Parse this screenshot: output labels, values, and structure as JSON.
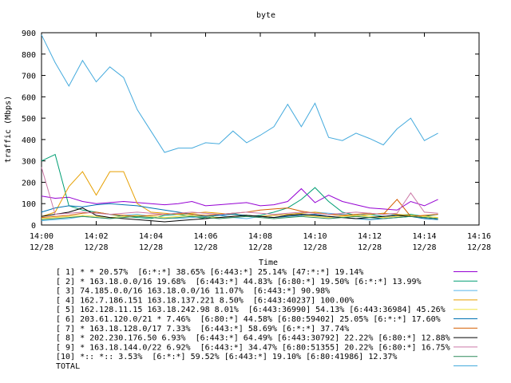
{
  "chart_data": {
    "type": "line",
    "title": "byte",
    "xlabel": "Time",
    "ylabel": "traffic (Mbps)",
    "ylim": [
      0,
      900
    ],
    "yticks": [
      0,
      100,
      200,
      300,
      400,
      500,
      600,
      700,
      800,
      900
    ],
    "xlim": [
      "14:00",
      "14:16"
    ],
    "xticks": [
      {
        "time": "14:00",
        "date": "12/28"
      },
      {
        "time": "14:02",
        "date": "12/28"
      },
      {
        "time": "14:04",
        "date": "12/28"
      },
      {
        "time": "14:06",
        "date": "12/28"
      },
      {
        "time": "14:08",
        "date": "12/28"
      },
      {
        "time": "14:10",
        "date": "12/28"
      },
      {
        "time": "14:12",
        "date": "12/28"
      },
      {
        "time": "14:14",
        "date": "12/28"
      },
      {
        "time": "14:16",
        "date": "12/28"
      }
    ],
    "grid": false,
    "legend_position": "bottom",
    "x": [
      "14:00:00",
      "14:00:30",
      "14:01:00",
      "14:01:30",
      "14:02:00",
      "14:02:30",
      "14:03:00",
      "14:03:30",
      "14:04:00",
      "14:04:30",
      "14:05:00",
      "14:05:30",
      "14:06:00",
      "14:06:30",
      "14:07:00",
      "14:07:30",
      "14:08:00",
      "14:08:30",
      "14:09:00",
      "14:09:30",
      "14:10:00",
      "14:10:30",
      "14:11:00",
      "14:11:30",
      "14:12:00",
      "14:12:30",
      "14:13:00",
      "14:13:30",
      "14:14:00",
      "14:14:30"
    ],
    "series": [
      {
        "name": "[ 1] * * 20.57%  [6:*:*] 38.65% [6:443:*] 25.14% [47:*:*] 19.14%",
        "color": "#9500d3",
        "values": [
          135,
          125,
          130,
          110,
          100,
          105,
          110,
          105,
          100,
          95,
          100,
          110,
          90,
          95,
          100,
          105,
          90,
          95,
          110,
          170,
          105,
          140,
          110,
          95,
          80,
          75,
          70,
          110,
          90,
          120
        ]
      },
      {
        "name": "[ 2] * 163.18.0.0/16 19.68%  [6:443:*] 44.83% [6:80:*] 19.50% [6:*:*] 13.99%",
        "color": "#009e73",
        "values": [
          300,
          330,
          90,
          70,
          60,
          50,
          40,
          35,
          30,
          45,
          50,
          40,
          30,
          50,
          55,
          40,
          45,
          60,
          80,
          120,
          175,
          110,
          60,
          45,
          50,
          40,
          45,
          50,
          40,
          50
        ]
      },
      {
        "name": "[ 3] 74.185.0.0/16 163.18.0.0/16 11.07%  [6:443:*] 90.98%",
        "color": "#56b4e9",
        "values": [
          20,
          25,
          30,
          40,
          35,
          30,
          45,
          50,
          40,
          35,
          30,
          35,
          40,
          45,
          35,
          30,
          40,
          45,
          50,
          55,
          60,
          55,
          50,
          45,
          50,
          55,
          45,
          40,
          35,
          30
        ]
      },
      {
        "name": "[ 4] 162.7.186.151 163.18.137.221 8.50%  [6:443:40237] 100.00%",
        "color": "#e69f00",
        "values": [
          40,
          60,
          180,
          250,
          140,
          250,
          250,
          100,
          60,
          55,
          50,
          55,
          60,
          55,
          50,
          45,
          40,
          45,
          50,
          55,
          60,
          50,
          45,
          40,
          50,
          55,
          50,
          45,
          40,
          35
        ]
      },
      {
        "name": "[ 5] 162.128.11.15 163.18.242.98 8.01%  [6:443:36990] 54.13% [6:443:36984] 45.26%",
        "color": "#f0e442",
        "values": [
          30,
          35,
          40,
          45,
          40,
          35,
          40,
          45,
          40,
          35,
          40,
          45,
          40,
          35,
          40,
          45,
          40,
          35,
          40,
          45,
          40,
          35,
          40,
          45,
          40,
          35,
          40,
          45,
          40,
          35
        ]
      },
      {
        "name": "[ 6] 203.61.120.0/21 * 7.46%  [6:80:*] 44.58% [6:80:59402] 25.05% [6:*:*] 17.60%",
        "color": "#0072b2",
        "values": [
          60,
          80,
          90,
          85,
          95,
          100,
          95,
          90,
          80,
          70,
          60,
          50,
          40,
          45,
          50,
          45,
          40,
          35,
          40,
          45,
          50,
          40,
          35,
          30,
          25,
          30,
          35,
          40,
          30,
          25
        ]
      },
      {
        "name": "[ 7] * 163.18.128.0/17 7.33%  [6:443:*] 58.69% [6:*:*] 37.74%",
        "color": "#d55e00",
        "values": [
          35,
          40,
          45,
          55,
          60,
          50,
          45,
          40,
          45,
          50,
          55,
          50,
          45,
          50,
          55,
          60,
          70,
          75,
          80,
          65,
          55,
          50,
          45,
          50,
          55,
          50,
          120,
          40,
          45,
          50
        ]
      },
      {
        "name": "[ 8] * 202.230.176.50 6.93%  [6:443:*] 64.49% [6:443:30792] 22.22% [6:80:*] 12.88%",
        "color": "#000000",
        "values": [
          40,
          50,
          60,
          80,
          45,
          35,
          30,
          25,
          20,
          15,
          20,
          25,
          30,
          35,
          40,
          45,
          40,
          35,
          45,
          50,
          45,
          40,
          35,
          30,
          35,
          40,
          45,
          40,
          35,
          30
        ]
      },
      {
        "name": "[ 9] * 163.18.144.0/22 6.92%  [6:443:*] 34.47% [6:80:51355] 20.22% [6:80:*] 16.75%",
        "color": "#cc79a7",
        "values": [
          270,
          50,
          55,
          60,
          55,
          50,
          55,
          60,
          55,
          50,
          55,
          60,
          55,
          50,
          55,
          60,
          55,
          50,
          55,
          60,
          55,
          50,
          55,
          60,
          55,
          50,
          55,
          150,
          60,
          55
        ]
      },
      {
        "name": "[10] *:: *:: 3.53%  [6:*:*] 59.52% [6:443:*] 19.10% [6:80:41986] 12.37%",
        "color": "#2f8a5a",
        "values": [
          25,
          30,
          35,
          40,
          35,
          30,
          35,
          40,
          35,
          30,
          35,
          40,
          35,
          30,
          35,
          40,
          35,
          30,
          35,
          40,
          35,
          30,
          35,
          40,
          35,
          30,
          35,
          40,
          35,
          30
        ]
      },
      {
        "name": "TOTAL",
        "color": "#44aadd",
        "values": [
          890,
          760,
          650,
          770,
          670,
          740,
          690,
          540,
          440,
          340,
          360,
          360,
          385,
          380,
          440,
          385,
          420,
          460,
          565,
          460,
          570,
          410,
          395,
          430,
          405,
          375,
          450,
          500,
          395,
          430
        ]
      }
    ]
  }
}
